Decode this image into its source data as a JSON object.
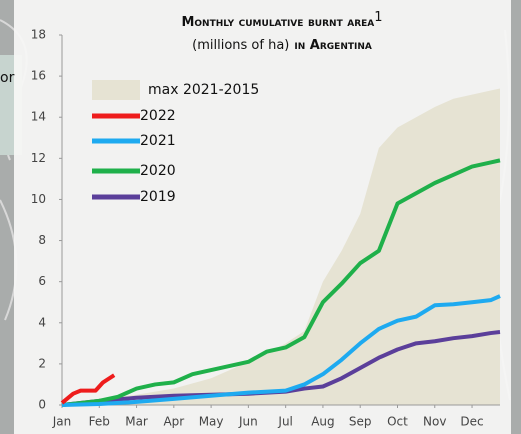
{
  "chart_data": {
    "type": "line",
    "title": "Monthly cumulative burnt area",
    "title_note": "1",
    "subtitle": "(millions of ha)",
    "subtitle_suffix": "in Argentina",
    "map_label": "or",
    "xlim": [
      0,
      11.75
    ],
    "xticks": [
      {
        "value": 0,
        "label": "Jan"
      },
      {
        "value": 1,
        "label": "Feb"
      },
      {
        "value": 2,
        "label": "Mar"
      },
      {
        "value": 3,
        "label": "Apr"
      },
      {
        "value": 4,
        "label": "May"
      },
      {
        "value": 5,
        "label": "Jun"
      },
      {
        "value": 6,
        "label": "Jul"
      },
      {
        "value": 7,
        "label": "Aug"
      },
      {
        "value": 8,
        "label": "Sep"
      },
      {
        "value": 9,
        "label": "Oct"
      },
      {
        "value": 10,
        "label": "Nov"
      },
      {
        "value": 11,
        "label": "Dec"
      }
    ],
    "ylim": [
      0,
      18
    ],
    "yticks": [
      0,
      2,
      4,
      6,
      8,
      10,
      12,
      14,
      16,
      18
    ],
    "band": {
      "name": "max 2021-2015",
      "color": "#e6e3d3",
      "x": [
        0,
        1,
        2,
        3,
        4,
        5,
        5.5,
        6,
        6.5,
        7,
        7.5,
        8,
        8.5,
        9,
        9.5,
        10,
        10.5,
        11,
        11.5,
        11.75
      ],
      "values": [
        0.1,
        0.3,
        0.5,
        0.8,
        1.3,
        2.1,
        2.5,
        3.0,
        3.6,
        6.0,
        7.5,
        9.3,
        12.5,
        13.5,
        14.0,
        14.5,
        14.9,
        15.1,
        15.3,
        15.4
      ]
    },
    "series": [
      {
        "name": "2022",
        "color": "#ee1c1c",
        "x": [
          0,
          0.3,
          0.5,
          0.9,
          1.1,
          1.4
        ],
        "values": [
          0.1,
          0.55,
          0.7,
          0.7,
          1.1,
          1.45
        ]
      },
      {
        "name": "2021",
        "color": "#1eaaf0",
        "x": [
          0,
          1,
          2,
          3,
          4,
          5,
          6,
          6.5,
          7,
          7.5,
          8,
          8.5,
          9,
          9.5,
          10,
          10.5,
          11,
          11.5,
          11.75
        ],
        "values": [
          0,
          0.05,
          0.15,
          0.3,
          0.45,
          0.6,
          0.7,
          1.0,
          1.5,
          2.2,
          3.0,
          3.7,
          4.1,
          4.3,
          4.85,
          4.9,
          5.0,
          5.1,
          5.3
        ]
      },
      {
        "name": "2020",
        "color": "#1fb04a",
        "x": [
          0,
          0.5,
          1,
          1.5,
          2,
          2.5,
          3,
          3.5,
          4,
          4.5,
          5,
          5.5,
          6,
          6.5,
          7,
          7.5,
          8,
          8.5,
          9,
          9.5,
          10,
          10.5,
          11,
          11.5,
          11.75
        ],
        "values": [
          0,
          0.1,
          0.2,
          0.4,
          0.8,
          1.0,
          1.1,
          1.5,
          1.7,
          1.9,
          2.1,
          2.6,
          2.8,
          3.3,
          5.0,
          5.9,
          6.9,
          7.5,
          9.8,
          10.3,
          10.8,
          11.2,
          11.6,
          11.8,
          11.9
        ]
      },
      {
        "name": "2019",
        "color": "#5b3f9a",
        "x": [
          0,
          1,
          2,
          3,
          4,
          5,
          6,
          6.5,
          7,
          7.5,
          8,
          8.5,
          9,
          9.5,
          10,
          10.5,
          11,
          11.5,
          11.75
        ],
        "values": [
          0,
          0.2,
          0.35,
          0.45,
          0.5,
          0.55,
          0.65,
          0.8,
          0.9,
          1.3,
          1.8,
          2.3,
          2.7,
          3.0,
          3.1,
          3.25,
          3.35,
          3.5,
          3.55
        ]
      }
    ]
  }
}
